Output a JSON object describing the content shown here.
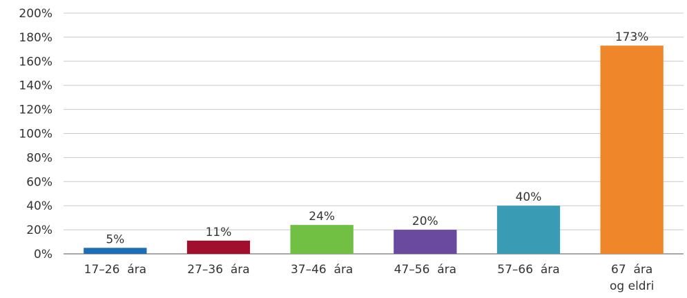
{
  "chart_data": {
    "type": "bar",
    "title": "",
    "xlabel": "",
    "ylabel": "",
    "ylim": [
      0,
      200
    ],
    "yticks": [
      "0%",
      "20%",
      "40%",
      "60%",
      "80%",
      "100%",
      "120%",
      "140%",
      "160%",
      "180%",
      "200%"
    ],
    "grid": true,
    "legend": "none",
    "categories": [
      [
        "17–26  ára"
      ],
      [
        "27–36  ára"
      ],
      [
        "37–46  ára"
      ],
      [
        "47–56  ára"
      ],
      [
        "57–66  ára"
      ],
      [
        "67  ára",
        "og eldri"
      ]
    ],
    "values": [
      5,
      11,
      24,
      20,
      40,
      173
    ],
    "value_labels": [
      "5%",
      "11%",
      "24%",
      "20%",
      "40%",
      "173%"
    ],
    "colors": [
      "#1f6eb5",
      "#a0102e",
      "#72c043",
      "#6a4a9e",
      "#3a9bb4",
      "#f0862a"
    ]
  }
}
